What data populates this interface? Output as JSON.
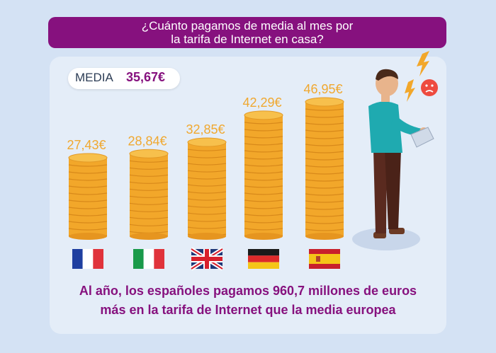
{
  "title": {
    "line1": "¿Cuánto pagamos de media al mes por",
    "line2": "la tarifa de Internet en casa?"
  },
  "media": {
    "label": "MEDIA",
    "value": "35,67€"
  },
  "chart_data": {
    "type": "bar",
    "categories": [
      "France",
      "Italy",
      "United Kingdom",
      "Germany",
      "Spain"
    ],
    "values": [
      27.43,
      28.84,
      32.85,
      42.29,
      46.95
    ],
    "value_labels": [
      "27,43€",
      "28,84€",
      "32,85€",
      "42,29€",
      "46,95€"
    ],
    "bar_style": "coin-stacks",
    "x_axis_markers": "country-flags",
    "grid": false,
    "colors": {
      "coins": "#f2a72a",
      "labels": "#f0a830",
      "accent": "#86117e"
    }
  },
  "footer": {
    "line1": "Al año, los españoles pagamos 960,7 millones de euros",
    "line2": "más en la tarifa de Internet que la media europea"
  }
}
